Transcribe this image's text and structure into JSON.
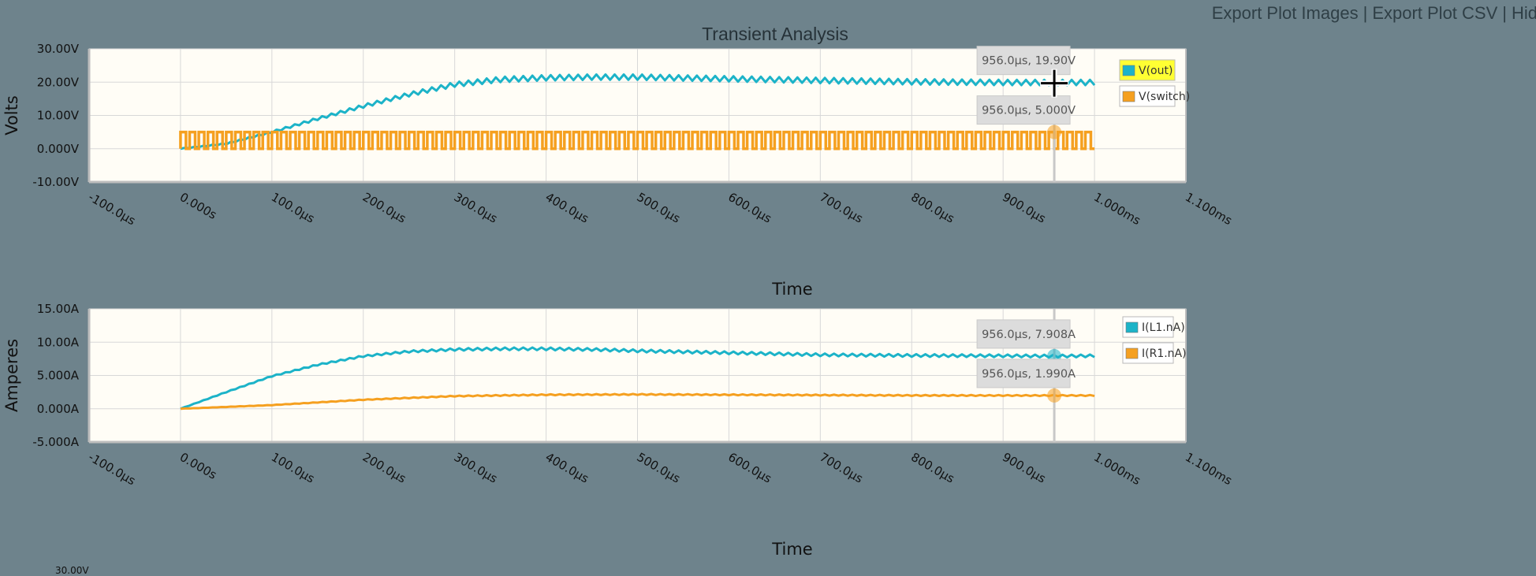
{
  "toolbar": {
    "export_images": "Export Plot Images",
    "export_csv": "Export Plot CSV",
    "hide": "Hid"
  },
  "title": "Transient Analysis",
  "colors": {
    "background": "#6e838c",
    "plot_bg": "#fffdf6",
    "cyan": "#1cb3c8",
    "orange": "#f5a020",
    "grid": "#d8d8d8",
    "legend_highlight": "#ffff33"
  },
  "crosshair_time_us": 956,
  "chart_data": [
    {
      "type": "line",
      "title": "Transient Analysis",
      "xlabel": "Time",
      "ylabel": "Volts",
      "xlim_us": [
        -100,
        1100
      ],
      "ylim": [
        -10,
        30
      ],
      "x_ticks": [
        "-100.0µs",
        "0.000s",
        "100.0µs",
        "200.0µs",
        "300.0µs",
        "400.0µs",
        "500.0µs",
        "600.0µs",
        "700.0µs",
        "800.0µs",
        "900.0µs",
        "1.000ms",
        "1.100ms"
      ],
      "y_ticks": [
        {
          "value": 30,
          "label": "30.00V"
        },
        {
          "value": 20,
          "label": "20.00V"
        },
        {
          "value": 10,
          "label": "10.00V"
        },
        {
          "value": 0,
          "label": "0.000V"
        },
        {
          "value": -10,
          "label": "-10.00V"
        }
      ],
      "grid": true,
      "legend_position": "top-right",
      "series": [
        {
          "name": "V(out)",
          "color": "#1cb3c8",
          "kind": "ripple",
          "highlighted": true,
          "x_us": [
            0,
            50,
            100,
            150,
            200,
            250,
            300,
            350,
            400,
            450,
            500,
            600,
            700,
            800,
            900,
            956,
            1000
          ],
          "y": [
            0,
            1.5,
            5.0,
            9.0,
            12.8,
            16.3,
            19.3,
            20.8,
            21.3,
            21.5,
            21.5,
            21.0,
            20.5,
            20.1,
            19.9,
            19.9,
            19.9
          ],
          "ripple_period_us": 10,
          "ripple_amplitude_start": 0.2,
          "ripple_amplitude_end": 1.6
        },
        {
          "name": "V(switch)",
          "color": "#f5a020",
          "kind": "square",
          "highlighted": false,
          "period_us": 10,
          "duty": 0.4,
          "low": 0,
          "high": 5,
          "start_us": 0,
          "end_us": 1000
        }
      ],
      "tooltips": [
        {
          "text": "956.0µs, 19.90V",
          "x_us": 956,
          "y": 19.9,
          "marker": false
        },
        {
          "text": "956.0µs, 5.000V",
          "x_us": 956,
          "y": 5.0,
          "marker": true
        }
      ]
    },
    {
      "type": "line",
      "xlabel": "Time",
      "ylabel": "Amperes",
      "xlim_us": [
        -100,
        1100
      ],
      "ylim": [
        -5,
        15
      ],
      "x_ticks": [
        "-100.0µs",
        "0.000s",
        "100.0µs",
        "200.0µs",
        "300.0µs",
        "400.0µs",
        "500.0µs",
        "600.0µs",
        "700.0µs",
        "800.0µs",
        "900.0µs",
        "1.000ms",
        "1.100ms"
      ],
      "y_ticks": [
        {
          "value": 15,
          "label": "15.00A"
        },
        {
          "value": 10,
          "label": "10.00A"
        },
        {
          "value": 5,
          "label": "5.000A"
        },
        {
          "value": 0,
          "label": "0.000A"
        },
        {
          "value": -5,
          "label": "-5.000A"
        }
      ],
      "grid": true,
      "legend_position": "top-right",
      "series": [
        {
          "name": "I(L1.nA)",
          "color": "#1cb3c8",
          "kind": "ripple",
          "highlighted": false,
          "x_us": [
            0,
            50,
            100,
            150,
            200,
            250,
            300,
            350,
            400,
            450,
            500,
            600,
            700,
            800,
            900,
            956,
            1000
          ],
          "y": [
            0,
            2.5,
            4.9,
            6.6,
            7.9,
            8.6,
            8.9,
            9.0,
            9.0,
            8.9,
            8.7,
            8.4,
            8.1,
            8.0,
            7.95,
            7.908,
            7.95
          ],
          "ripple_period_us": 10,
          "ripple_amplitude_start": 0.05,
          "ripple_amplitude_end": 0.4
        },
        {
          "name": "I(R1.nA)",
          "color": "#f5a020",
          "kind": "ripple",
          "highlighted": false,
          "x_us": [
            0,
            100,
            200,
            300,
            400,
            500,
            600,
            700,
            800,
            900,
            956,
            1000
          ],
          "y": [
            0,
            0.55,
            1.35,
            1.9,
            2.1,
            2.15,
            2.1,
            2.05,
            2.0,
            1.99,
            1.99,
            1.99
          ],
          "ripple_period_us": 10,
          "ripple_amplitude_start": 0.02,
          "ripple_amplitude_end": 0.15
        }
      ],
      "tooltips": [
        {
          "text": "956.0µs, 7.908A",
          "x_us": 956,
          "y": 7.908,
          "marker": true
        },
        {
          "text": "956.0µs, 1.990A",
          "x_us": 956,
          "y": 1.99,
          "marker": true
        }
      ]
    }
  ],
  "next_chart_partial_label": "30.00V"
}
